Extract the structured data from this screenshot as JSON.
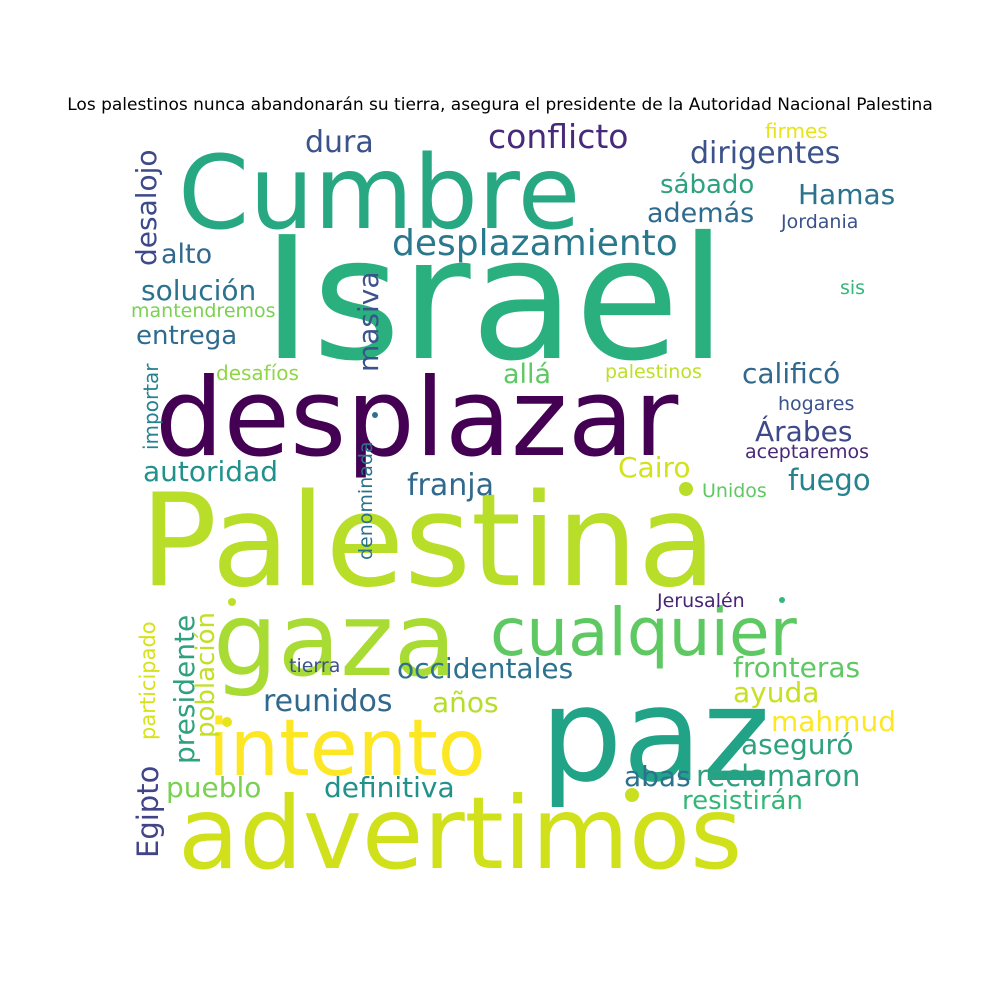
{
  "figure": {
    "title": "Los palestinos nunca abandonarán su tierra, asegura el presidente de la Autoridad Nacional Palestina"
  },
  "words": [
    {
      "id": "israel",
      "text": "Israel",
      "color": "#2ab07f"
    },
    {
      "id": "cumbre",
      "text": "Cumbre",
      "color": "#27a882"
    },
    {
      "id": "desplazar",
      "text": "desplazar",
      "color": "#440154"
    },
    {
      "id": "palestina",
      "text": "Palestina",
      "color": "#b8de29"
    },
    {
      "id": "gaza",
      "text": "gaza",
      "color": "#a8db34"
    },
    {
      "id": "cualquier",
      "text": "cualquier",
      "color": "#5ec962"
    },
    {
      "id": "paz",
      "text": "paz",
      "color": "#20a386"
    },
    {
      "id": "intento",
      "text": "intento",
      "color": "#fde725"
    },
    {
      "id": "advertimos",
      "text": "advertimos",
      "color": "#d0e11c"
    },
    {
      "id": "conflicto",
      "text": "conflicto",
      "color": "#472a7a"
    },
    {
      "id": "desplazamiento",
      "text": "desplazamiento",
      "color": "#2a788e"
    },
    {
      "id": "dura",
      "text": "dura",
      "color": "#3b528b"
    },
    {
      "id": "firmes",
      "text": "firmes",
      "color": "#e7e419"
    },
    {
      "id": "dirigentes",
      "text": "dirigentes",
      "color": "#3b528b"
    },
    {
      "id": "sabado",
      "text": "sábado",
      "color": "#2ea17e"
    },
    {
      "id": "hamas",
      "text": "Hamas",
      "color": "#2c728e"
    },
    {
      "id": "ademas",
      "text": "además",
      "color": "#2f6b8e"
    },
    {
      "id": "jordania",
      "text": "Jordania",
      "color": "#3b528b"
    },
    {
      "id": "desalojo",
      "text": "desalojo",
      "color": "#3e4989"
    },
    {
      "id": "alto",
      "text": "alto",
      "color": "#31688e"
    },
    {
      "id": "solucion",
      "text": "solución",
      "color": "#2c728e"
    },
    {
      "id": "mantendremos",
      "text": "mantendremos",
      "color": "#7ad151"
    },
    {
      "id": "entrega",
      "text": "entrega",
      "color": "#2f6b8e"
    },
    {
      "id": "masiva",
      "text": "masiva",
      "color": "#3b528b"
    },
    {
      "id": "sis",
      "text": "sis",
      "color": "#35b779"
    },
    {
      "id": "importar",
      "text": "importar",
      "color": "#26828e"
    },
    {
      "id": "desafios",
      "text": "desafíos",
      "color": "#8fd744"
    },
    {
      "id": "alla",
      "text": "allá",
      "color": "#5ec962"
    },
    {
      "id": "palestinos",
      "text": "palestinos",
      "color": "#bddf26"
    },
    {
      "id": "califico",
      "text": "calificó",
      "color": "#31688e"
    },
    {
      "id": "hogares",
      "text": "hogares",
      "color": "#3b528b"
    },
    {
      "id": "arabes",
      "text": "Árabes",
      "color": "#3e4989"
    },
    {
      "id": "aceptaremos",
      "text": "aceptaremos",
      "color": "#482878"
    },
    {
      "id": "autoridad",
      "text": "autoridad",
      "color": "#21918c"
    },
    {
      "id": "denominada",
      "text": "denominada",
      "color": "#2c728e"
    },
    {
      "id": "cairo",
      "text": "Cairo",
      "color": "#d2e21b"
    },
    {
      "id": "fuego",
      "text": "fuego",
      "color": "#26828e"
    },
    {
      "id": "franja",
      "text": "franja",
      "color": "#31688e"
    },
    {
      "id": "unidos",
      "text": "Unidos",
      "color": "#5ec962"
    },
    {
      "id": "presidente",
      "text": "presidente",
      "color": "#2ea17e"
    },
    {
      "id": "poblacion",
      "text": "población",
      "color": "#c2df23"
    },
    {
      "id": "participado",
      "text": "participado",
      "color": "#d8e219"
    },
    {
      "id": "egipto",
      "text": "Egipto",
      "color": "#414487"
    },
    {
      "id": "jerusalen",
      "text": "Jerusalén",
      "color": "#482475"
    },
    {
      "id": "tierra",
      "text": "tierra",
      "color": "#3b528b"
    },
    {
      "id": "occidentales",
      "text": "occidentales",
      "color": "#2c728e"
    },
    {
      "id": "fronteras",
      "text": "fronteras",
      "color": "#5ec962"
    },
    {
      "id": "reunidos",
      "text": "reunidos",
      "color": "#31688e"
    },
    {
      "id": "anos",
      "text": "años",
      "color": "#b5de2b"
    },
    {
      "id": "ayuda",
      "text": "ayuda",
      "color": "#c8e020"
    },
    {
      "id": "mahmud",
      "text": "mahmud",
      "color": "#fde725"
    },
    {
      "id": "aseguro",
      "text": "aseguró",
      "color": "#2ea17e"
    },
    {
      "id": "abas",
      "text": "abas",
      "color": "#2c728e"
    },
    {
      "id": "reclamaron",
      "text": "reclamaron",
      "color": "#2ea17e"
    },
    {
      "id": "pueblo",
      "text": "pueblo",
      "color": "#7ad151"
    },
    {
      "id": "definitiva",
      "text": "definitiva",
      "color": "#21918c"
    },
    {
      "id": "resistiran",
      "text": "resistirán",
      "color": "#35b779"
    }
  ]
}
